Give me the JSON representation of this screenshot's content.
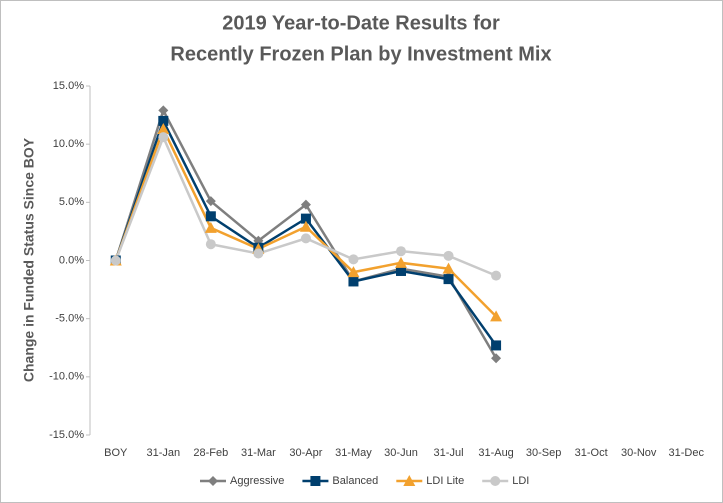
{
  "chart_data": {
    "type": "line",
    "title": [
      "2019 Year-to-Date Results for",
      "Recently Frozen Plan by Investment Mix"
    ],
    "y_label": "Change in Funded Status Since BOY",
    "categories": [
      "BOY",
      "31-Jan",
      "28-Feb",
      "31-Mar",
      "30-Apr",
      "31-May",
      "30-Jun",
      "31-Jul",
      "31-Aug",
      "30-Sep",
      "31-Oct",
      "30-Nov",
      "31-Dec"
    ],
    "series": [
      {
        "name": "Aggressive",
        "color": "#7f7f7f",
        "marker": "diamond",
        "values": [
          0,
          12.9,
          5.1,
          1.7,
          4.8,
          -1.8,
          -0.7,
          -1.4,
          -8.4,
          null,
          null,
          null,
          null
        ]
      },
      {
        "name": "Balanced",
        "color": "#003f6e",
        "marker": "square",
        "values": [
          0,
          12.0,
          3.8,
          1.1,
          3.6,
          -1.8,
          -0.9,
          -1.6,
          -7.3,
          null,
          null,
          null,
          null
        ]
      },
      {
        "name": "LDI Lite",
        "color": "#f2a12e",
        "marker": "triangle",
        "values": [
          0,
          11.3,
          2.8,
          1.0,
          2.9,
          -1.0,
          -0.2,
          -0.7,
          -4.8,
          null,
          null,
          null,
          null
        ]
      },
      {
        "name": "LDI",
        "color": "#c9c9c9",
        "marker": "circle",
        "values": [
          0,
          10.6,
          1.4,
          0.6,
          1.9,
          0.1,
          0.8,
          0.4,
          -1.3,
          null,
          null,
          null,
          null
        ]
      }
    ],
    "ylim": [
      -15,
      15
    ],
    "yticks": [
      {
        "value": -15,
        "label": "-15.0%"
      },
      {
        "value": -10,
        "label": "-10.0%"
      },
      {
        "value": -5,
        "label": "-5.0%"
      },
      {
        "value": 0,
        "label": "0.0%"
      },
      {
        "value": 5,
        "label": "5.0%"
      },
      {
        "value": 10,
        "label": "10.0%"
      },
      {
        "value": 15,
        "label": "15.0%"
      }
    ],
    "grid": false,
    "legend": "bottom"
  }
}
